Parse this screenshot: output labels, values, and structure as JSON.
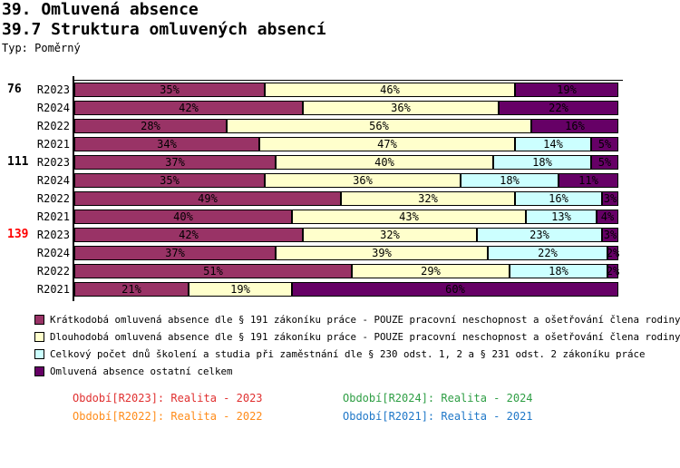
{
  "header": {
    "title_line1": "39. Omluvená absence",
    "title_line2": "39.7 Struktura omluvených absencí",
    "type_label": "Typ: Poměrný"
  },
  "chart_data": {
    "type": "bar",
    "stacked": true,
    "orientation": "horizontal",
    "value_unit": "%",
    "xlim": [
      0,
      100
    ],
    "series": [
      {
        "name": "Krátkodobá omluvená absence dle § 191 zákoníku práce - POUZE pracovní neschopnost a ošetřování člena rodiny",
        "color": "#993366"
      },
      {
        "name": "Dlouhodobá omluvená absence dle § 191 zákoníku práce - POUZE pracovní neschopnost a ošetřování člena rodiny",
        "color": "#FFFFCC"
      },
      {
        "name": "Celkový počet dnů školení a studia při zaměstnání dle § 230 odst. 1, 2 a § 231 odst. 2 zákoníku práce",
        "color": "#CCFFFF"
      },
      {
        "name": "Omluvená absence ostatní celkem",
        "color": "#660066"
      }
    ],
    "groups": [
      {
        "label": "76",
        "label_color": "#000000",
        "rows": [
          {
            "label": "R2023",
            "values": [
              35,
              46,
              0,
              19
            ]
          },
          {
            "label": "R2024",
            "values": [
              42,
              36,
              0,
              22
            ]
          },
          {
            "label": "R2022",
            "values": [
              28,
              56,
              0,
              16
            ]
          },
          {
            "label": "R2021",
            "values": [
              34,
              47,
              14,
              5
            ]
          }
        ]
      },
      {
        "label": "111",
        "label_color": "#000000",
        "rows": [
          {
            "label": "R2023",
            "values": [
              37,
              40,
              18,
              5
            ]
          },
          {
            "label": "R2024",
            "values": [
              35,
              36,
              18,
              11
            ]
          },
          {
            "label": "R2022",
            "values": [
              49,
              32,
              16,
              3
            ]
          },
          {
            "label": "R2021",
            "values": [
              40,
              43,
              13,
              4
            ]
          }
        ]
      },
      {
        "label": "139",
        "label_color": "#FF0000",
        "rows": [
          {
            "label": "R2023",
            "values": [
              42,
              32,
              23,
              3
            ]
          },
          {
            "label": "R2024",
            "values": [
              37,
              39,
              22,
              2
            ]
          },
          {
            "label": "R2022",
            "values": [
              51,
              29,
              18,
              2
            ]
          },
          {
            "label": "R2021",
            "values": [
              21,
              19,
              0,
              60
            ]
          }
        ]
      }
    ]
  },
  "periods": [
    {
      "label": "Období[R2023]: Realita - 2023",
      "color": "#E03030"
    },
    {
      "label": "Období[R2024]: Realita - 2024",
      "color": "#2E9E44"
    },
    {
      "label": "Období[R2022]: Realita - 2022",
      "color": "#FF8C1A"
    },
    {
      "label": "Období[R2021]: Realita - 2021",
      "color": "#2078C8"
    }
  ]
}
